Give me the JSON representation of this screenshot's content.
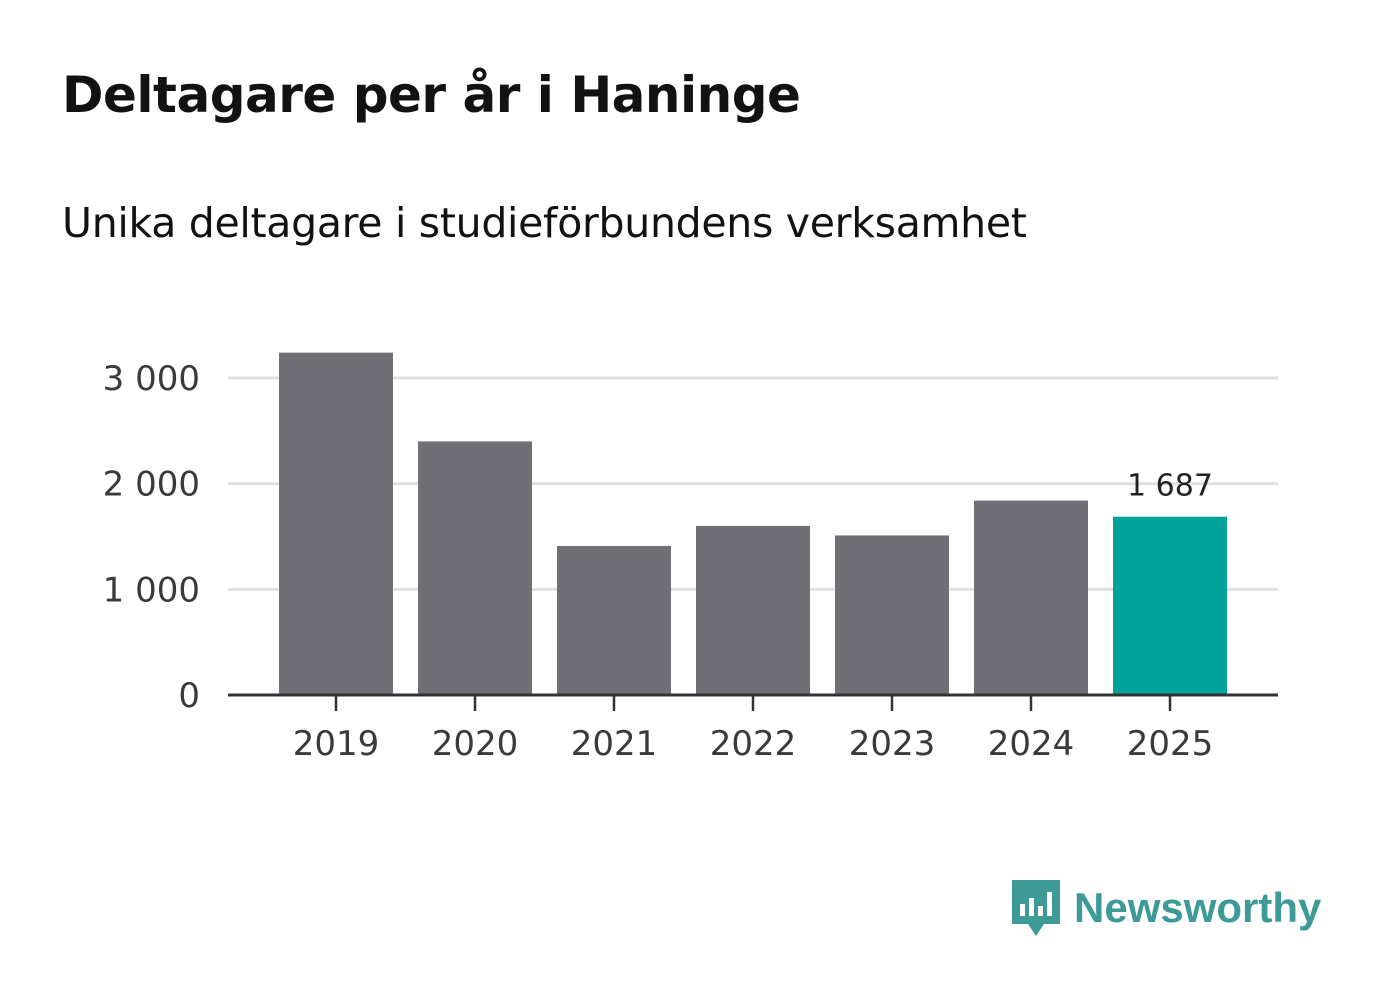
{
  "chart_data": {
    "type": "bar",
    "title": "Deltagare per år i Haninge",
    "subtitle": "Unika deltagare i studieförbundens verksamhet",
    "categories": [
      "2019",
      "2020",
      "2021",
      "2022",
      "2023",
      "2024",
      "2025"
    ],
    "values": [
      3240,
      2400,
      1410,
      1600,
      1510,
      1840,
      1687
    ],
    "y_ticks": [
      0,
      1000,
      2000,
      3000
    ],
    "y_tick_labels": [
      "0",
      "1 000",
      "2 000",
      "3 000"
    ],
    "ylim": [
      0,
      3250
    ],
    "highlight_index": 6,
    "highlight_label": "1 687",
    "xlabel": "",
    "ylabel": "",
    "grid": true,
    "colors": {
      "bar": "#706f75",
      "highlight": "#00a39a",
      "grid": "#e0e0e0",
      "axis": "#333333"
    }
  },
  "brand": {
    "name": "Newsworthy",
    "icon": "newsworthy-logo-icon",
    "color": "#3d9a97"
  }
}
